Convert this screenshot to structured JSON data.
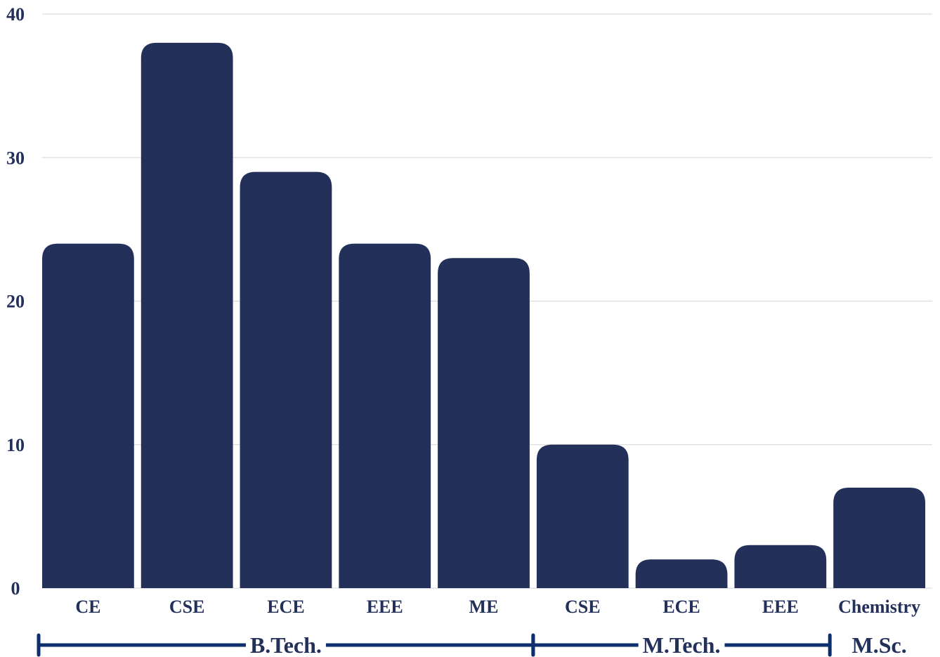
{
  "chart_data": {
    "type": "bar",
    "categories": [
      "CE",
      "CSE",
      "ECE",
      "EEE",
      "ME",
      "CSE",
      "ECE",
      "EEE",
      "Chemistry"
    ],
    "values": [
      24,
      38,
      29,
      24,
      23,
      10,
      2,
      3,
      7
    ],
    "groups": [
      {
        "label": "B.Tech.",
        "span": [
          0,
          4
        ]
      },
      {
        "label": "M.Tech.",
        "span": [
          5,
          7
        ]
      },
      {
        "label": "M.Sc.",
        "span": [
          8,
          8
        ]
      }
    ],
    "y_ticks": [
      "0",
      "10",
      "20",
      "30",
      "40"
    ],
    "ylim": [
      0,
      40
    ],
    "grid": true,
    "title": "",
    "xlabel": "",
    "ylabel": "",
    "colors": {
      "bar": "#22305a",
      "grid": "#d6d6d6",
      "text": "#22305a",
      "bracket": "#0d2f6e"
    }
  }
}
